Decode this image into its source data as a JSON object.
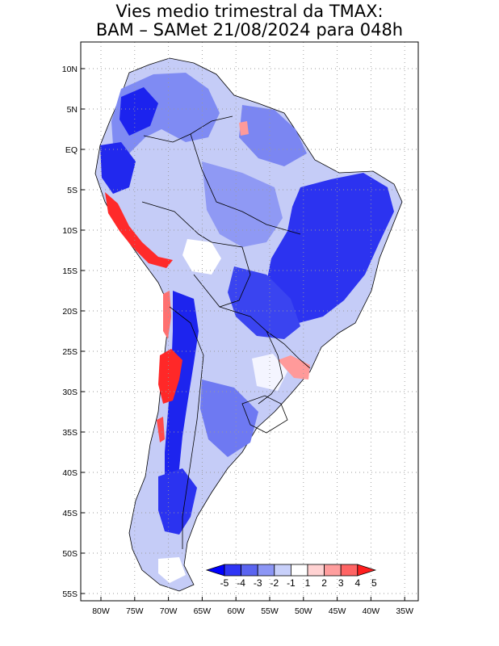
{
  "title": {
    "line1": "Vies medio trimestral da TMAX:",
    "line2": "BAM – SAMet 21/08/2024  para 048h"
  },
  "map": {
    "lat_ticks": [
      "10N",
      "5N",
      "EQ",
      "5S",
      "10S",
      "15S",
      "20S",
      "25S",
      "30S",
      "35S",
      "40S",
      "45S",
      "50S",
      "55S"
    ],
    "lon_ticks": [
      "80W",
      "75W",
      "70W",
      "65W",
      "60W",
      "55W",
      "50W",
      "45W",
      "40W",
      "35W"
    ],
    "grid": true,
    "grid_style": "dotted"
  },
  "colorbar": {
    "labels": [
      "-5",
      "-4",
      "-3",
      "-2",
      "-1",
      "1",
      "2",
      "3",
      "4",
      "5"
    ],
    "colors": [
      "#0000ff",
      "#2f35f5",
      "#5a64f0",
      "#8c96f5",
      "#c8d0fa",
      "#ffffff",
      "#ffd2d2",
      "#ff9e9e",
      "#ff6464",
      "#ff1e1e"
    ]
  },
  "legend_colors": {
    "strong_cold": "#1e1ef0",
    "cold": "#6e78f5",
    "mild_cold": "#b4bef8",
    "neutral": "#ffffff",
    "warm": "#ff3030"
  }
}
